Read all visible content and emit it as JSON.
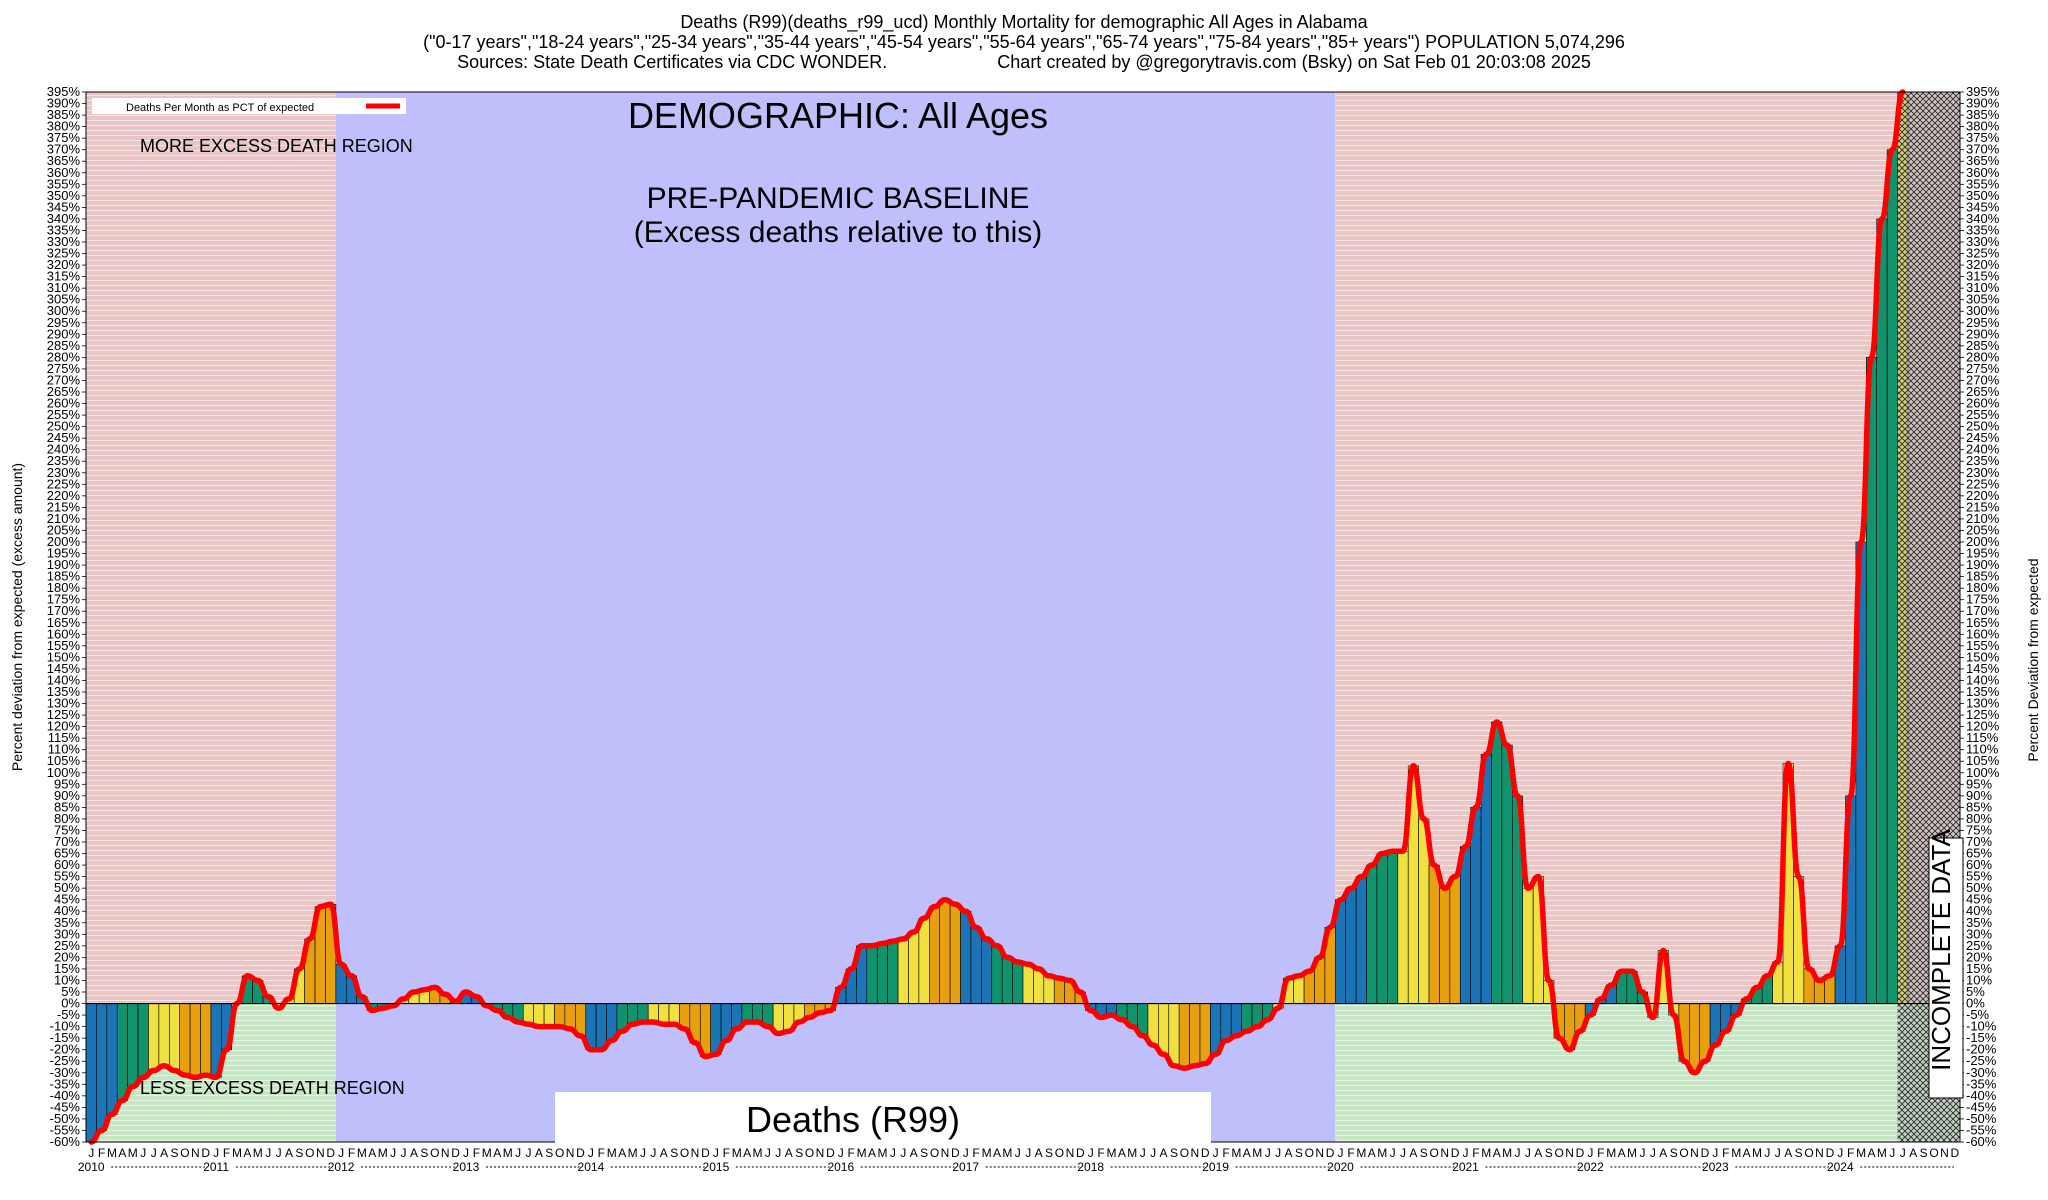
{
  "header": {
    "line1": "Deaths (R99)(deaths_r99_ucd) Monthly Mortality for demographic All Ages in Alabama",
    "line2": "(\"0-17 years\",\"18-24 years\",\"25-34 years\",\"35-44 years\",\"45-54 years\",\"55-64 years\",\"65-74 years\",\"75-84 years\",\"85+ years\") POPULATION 5,074,296",
    "line3_left": "Sources: State Death Certificates via CDC WONDER.",
    "line3_right": "Chart created by @gregorytravis.com (Bsky) on Sat Feb 01 20:03:08 2025"
  },
  "chart_data": {
    "type": "bar",
    "ylabel_left": "Percent deviation from expected (excess amount)",
    "ylabel_right": "Percent Deviation from expected",
    "ylim": [
      -60,
      395
    ],
    "ytick_step": 5,
    "legend_label": "Deaths Per Month as PCT of expected",
    "legend_position": "top-left",
    "annotations": {
      "demographic": "DEMOGRAPHIC: All Ages",
      "baseline_line1": "PRE-PANDEMIC BASELINE",
      "baseline_line2": "(Excess deaths relative to this)",
      "more_excess": "MORE EXCESS DEATH REGION",
      "less_excess": "LESS EXCESS DEATH REGION",
      "metric": "Deaths (R99)",
      "incomplete": "INCOMPLETE DATA"
    },
    "regions": {
      "baseline_start": "2012-01",
      "baseline_end": "2019-12",
      "incomplete_start": "2024-07"
    },
    "start_year": 2010,
    "month_letters": [
      "J",
      "F",
      "M",
      "A",
      "M",
      "J",
      "J",
      "A",
      "S",
      "O",
      "N",
      "D"
    ],
    "years": [
      "2010",
      "2011",
      "2012",
      "2013",
      "2014",
      "2015",
      "2016",
      "2017",
      "2018",
      "2019",
      "2020",
      "2021",
      "2022",
      "2023",
      "2024"
    ],
    "bar_colors": [
      "#1a74b5",
      "#11946e",
      "#f0e040",
      "#e6a010"
    ],
    "line_color": "#ff0000",
    "values": [
      -60,
      -55,
      -48,
      -42,
      -36,
      -32,
      -29,
      -27,
      -29,
      -31,
      -32,
      -31,
      -32,
      -20,
      0,
      12,
      10,
      3,
      -2,
      2,
      15,
      28,
      42,
      43,
      17,
      12,
      3,
      -3,
      -2,
      -1,
      2,
      5,
      6,
      7,
      4,
      1,
      5,
      3,
      -1,
      -3,
      -6,
      -8,
      -9,
      -10,
      -10,
      -10,
      -11,
      -14,
      -20,
      -20,
      -16,
      -12,
      -9,
      -8,
      -8,
      -9,
      -9,
      -11,
      -17,
      -23,
      -22,
      -16,
      -11,
      -8,
      -8,
      -10,
      -13,
      -12,
      -8,
      -6,
      -4,
      -3,
      7,
      15,
      25,
      25,
      26,
      27,
      28,
      31,
      37,
      42,
      45,
      43,
      40,
      33,
      28,
      25,
      20,
      18,
      17,
      15,
      12,
      11,
      10,
      5,
      -3,
      -6,
      -5,
      -7,
      -10,
      -14,
      -18,
      -22,
      -27,
      -28,
      -27,
      -26,
      -22,
      -16,
      -14,
      -12,
      -10,
      -7,
      -2,
      11,
      12,
      14,
      20,
      33,
      45,
      50,
      55,
      60,
      65,
      66,
      66,
      103,
      80,
      60,
      50,
      55,
      68,
      85,
      108,
      122,
      112,
      90,
      50,
      55,
      10,
      -15,
      -20,
      -12,
      -5,
      2,
      8,
      14,
      14,
      5,
      -6,
      23,
      -5,
      -25,
      -30,
      -25,
      -18,
      -12,
      -5,
      2,
      7,
      12,
      18,
      104,
      55,
      15,
      10,
      12,
      25,
      90,
      200,
      280,
      340,
      370,
      395
    ]
  }
}
